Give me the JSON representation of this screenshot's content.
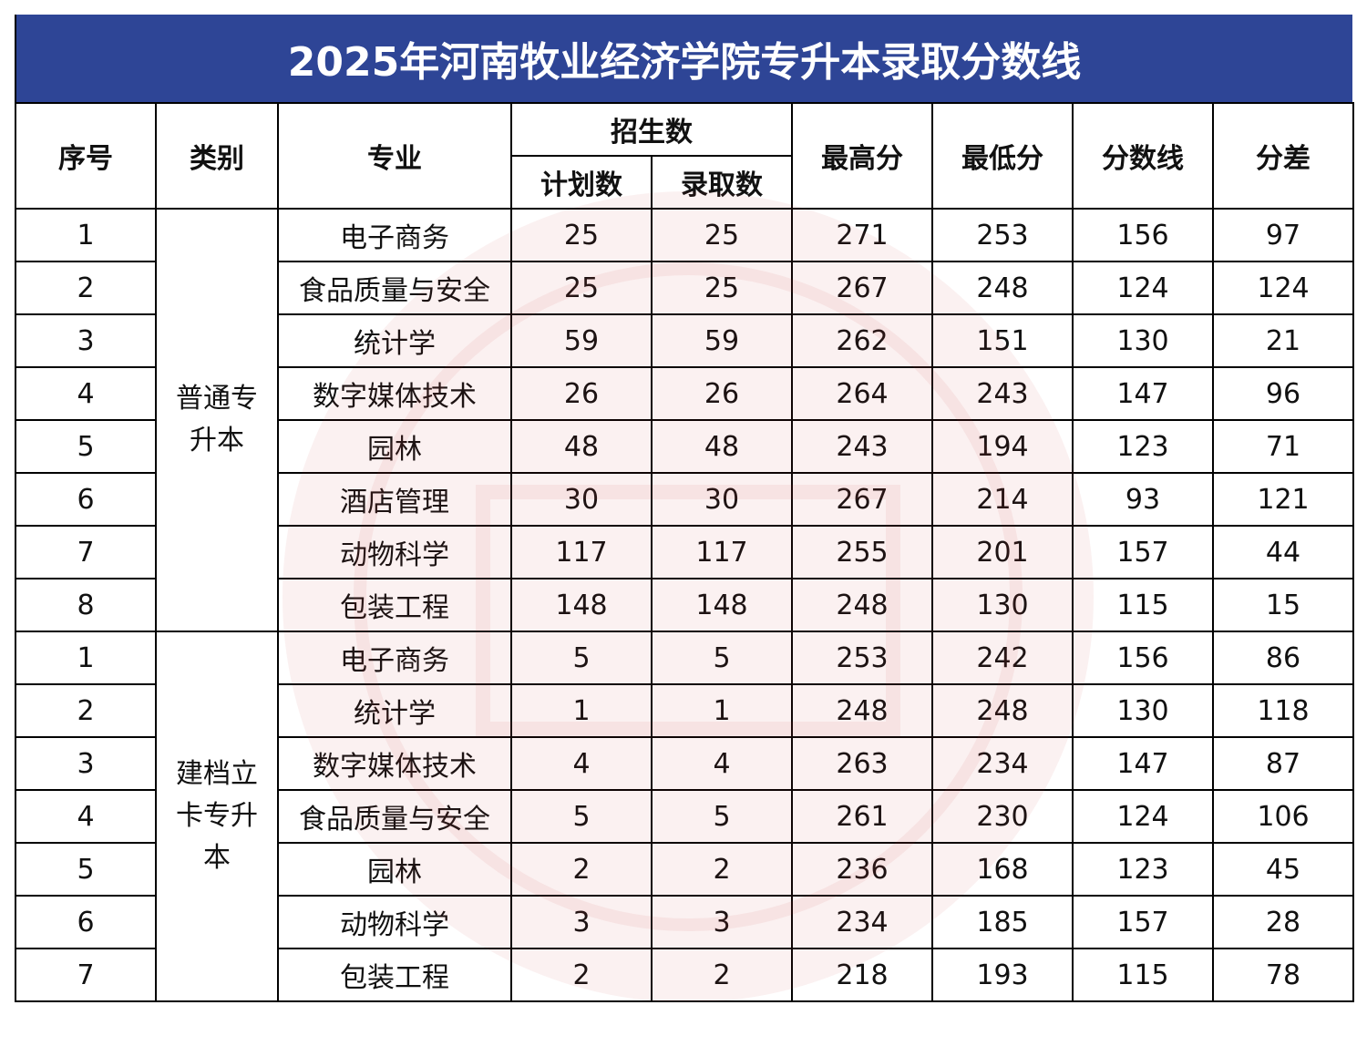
{
  "title": "2025年河南牧业经济学院专升本录取分数线",
  "colors": {
    "title_bg": "#2e4596",
    "watermark": "#c83c3c"
  },
  "headers": {
    "index": "序号",
    "category": "类别",
    "major": "专业",
    "enrollment": "招生数",
    "plan": "计划数",
    "admitted": "录取数",
    "max": "最高分",
    "min": "最低分",
    "cutoff": "分数线",
    "diff": "分差"
  },
  "groups": [
    {
      "category": "普通专升本",
      "rows": [
        {
          "index": "1",
          "major": "电子商务",
          "plan": "25",
          "admitted": "25",
          "max": "271",
          "min": "253",
          "cutoff": "156",
          "diff": "97"
        },
        {
          "index": "2",
          "major": "食品质量与安全",
          "plan": "25",
          "admitted": "25",
          "max": "267",
          "min": "248",
          "cutoff": "124",
          "diff": "124"
        },
        {
          "index": "3",
          "major": "统计学",
          "plan": "59",
          "admitted": "59",
          "max": "262",
          "min": "151",
          "cutoff": "130",
          "diff": "21"
        },
        {
          "index": "4",
          "major": "数字媒体技术",
          "plan": "26",
          "admitted": "26",
          "max": "264",
          "min": "243",
          "cutoff": "147",
          "diff": "96"
        },
        {
          "index": "5",
          "major": "园林",
          "plan": "48",
          "admitted": "48",
          "max": "243",
          "min": "194",
          "cutoff": "123",
          "diff": "71"
        },
        {
          "index": "6",
          "major": "酒店管理",
          "plan": "30",
          "admitted": "30",
          "max": "267",
          "min": "214",
          "cutoff": "93",
          "diff": "121"
        },
        {
          "index": "7",
          "major": "动物科学",
          "plan": "117",
          "admitted": "117",
          "max": "255",
          "min": "201",
          "cutoff": "157",
          "diff": "44"
        },
        {
          "index": "8",
          "major": "包装工程",
          "plan": "148",
          "admitted": "148",
          "max": "248",
          "min": "130",
          "cutoff": "115",
          "diff": "15"
        }
      ]
    },
    {
      "category": "建档立卡专升本",
      "rows": [
        {
          "index": "1",
          "major": "电子商务",
          "plan": "5",
          "admitted": "5",
          "max": "253",
          "min": "242",
          "cutoff": "156",
          "diff": "86"
        },
        {
          "index": "2",
          "major": "统计学",
          "plan": "1",
          "admitted": "1",
          "max": "248",
          "min": "248",
          "cutoff": "130",
          "diff": "118"
        },
        {
          "index": "3",
          "major": "数字媒体技术",
          "plan": "4",
          "admitted": "4",
          "max": "263",
          "min": "234",
          "cutoff": "147",
          "diff": "87"
        },
        {
          "index": "4",
          "major": "食品质量与安全",
          "plan": "5",
          "admitted": "5",
          "max": "261",
          "min": "230",
          "cutoff": "124",
          "diff": "106"
        },
        {
          "index": "5",
          "major": "园林",
          "plan": "2",
          "admitted": "2",
          "max": "236",
          "min": "168",
          "cutoff": "123",
          "diff": "45"
        },
        {
          "index": "6",
          "major": "动物科学",
          "plan": "3",
          "admitted": "3",
          "max": "234",
          "min": "185",
          "cutoff": "157",
          "diff": "28"
        },
        {
          "index": "7",
          "major": "包装工程",
          "plan": "2",
          "admitted": "2",
          "max": "218",
          "min": "193",
          "cutoff": "115",
          "diff": "78"
        }
      ]
    }
  ]
}
